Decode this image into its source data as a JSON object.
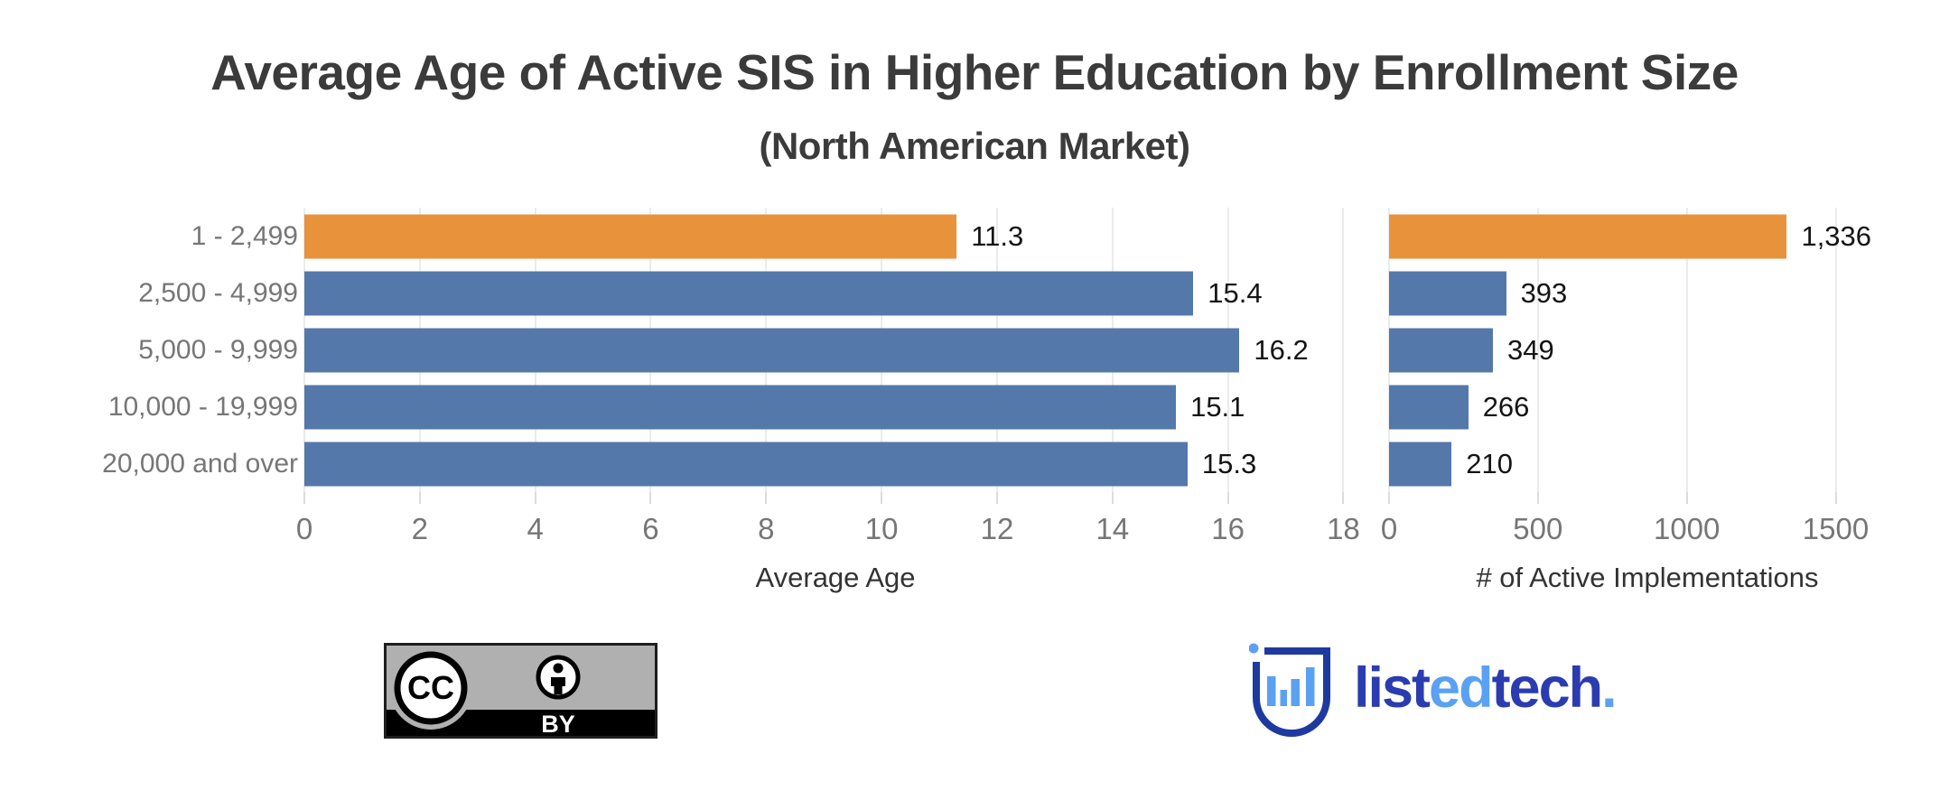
{
  "header": {
    "title": "Average Age of Active SIS in Higher Education by Enrollment Size",
    "subtitle": "(North American Market)"
  },
  "colors": {
    "bar_default": "#5578ab",
    "bar_highlight": "#e8923c",
    "gridline": "#ebebeb",
    "brand_navy": "#2b3cb0",
    "brand_light_blue": "#5ba1f2"
  },
  "chart_data": [
    {
      "type": "bar",
      "orientation": "horizontal",
      "categories": [
        "1 - 2,499",
        "2,500 - 4,999",
        "5,000 - 9,999",
        "10,000 - 19,999",
        "20,000 and over"
      ],
      "values": [
        11.3,
        15.4,
        16.2,
        15.1,
        15.3
      ],
      "value_labels": [
        "11.3",
        "15.4",
        "16.2",
        "15.1",
        "15.3"
      ],
      "highlight_index": 0,
      "xlabel": "Average Age",
      "xlim": [
        0,
        18.4
      ],
      "xticks": [
        0,
        2,
        4,
        6,
        8,
        10,
        12,
        14,
        16,
        18
      ],
      "xtick_labels": [
        "0",
        "2",
        "4",
        "6",
        "8",
        "10",
        "12",
        "14",
        "16",
        "18"
      ],
      "grid": "vertical-light",
      "legend": "none"
    },
    {
      "type": "bar",
      "orientation": "horizontal",
      "categories": [
        "1 - 2,499",
        "2,500 - 4,999",
        "5,000 - 9,999",
        "10,000 - 19,999",
        "20,000 and over"
      ],
      "values": [
        1336,
        393,
        349,
        266,
        210
      ],
      "value_labels": [
        "1,336",
        "393",
        "349",
        "266",
        "210"
      ],
      "highlight_index": 0,
      "xlabel": "# of Active Implementations",
      "xlim": [
        0,
        1735
      ],
      "xticks": [
        0,
        500,
        1000,
        1500
      ],
      "xtick_labels": [
        "0",
        "500",
        "1000",
        "1500"
      ],
      "grid": "vertical-light",
      "legend": "none"
    }
  ],
  "footer": {
    "license": {
      "cc_text": "CC",
      "by_text": "BY",
      "name": "creative-commons-attribution"
    },
    "brand": {
      "wordmark_parts": [
        {
          "text": "list",
          "color": "#2b3cb0"
        },
        {
          "text": "ed",
          "color": "#5ba1f2"
        },
        {
          "text": "tech",
          "color": "#2b3cb0"
        },
        {
          "text": ".",
          "color": "#5ba1f2"
        }
      ]
    }
  }
}
